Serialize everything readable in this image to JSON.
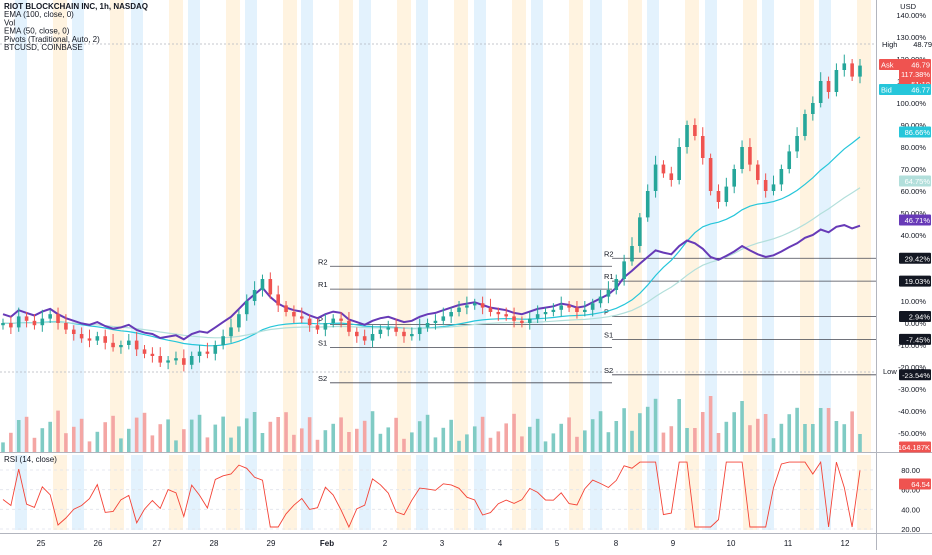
{
  "chart_data": {
    "type": "candlestick",
    "title": "RIOT BLOCKCHAIN INC, 1h, NASDAQ",
    "currency": "USD",
    "legend": [
      "RIOT BLOCKCHAIN INC, 1h, NASDAQ",
      "EMA (100, close, 0)",
      "Vol",
      "EMA (50, close, 0)",
      "Pivots (Traditional, Auto, 2)",
      "BTCUSD, COINBASE"
    ],
    "rsi_label": "RSI (14, close)",
    "x_labels": [
      "25",
      "26",
      "27",
      "28",
      "29",
      "Feb",
      "2",
      "3",
      "4",
      "5",
      "8",
      "9",
      "10",
      "11",
      "12"
    ],
    "y_ticks_pct": [
      "140.00%",
      "130.00%",
      "120.00%",
      "110.00%",
      "100.00%",
      "90.00%",
      "80.00%",
      "70.00%",
      "60.00%",
      "50.00%",
      "40.00%",
      "30.00%",
      "20.00%",
      "10.00%",
      "0.00%",
      "-10.00%",
      "-20.00%",
      "-30.00%",
      "-40.00%",
      "-50.00%"
    ],
    "rsi_ticks": [
      "80.00",
      "60.00",
      "40.00",
      "20.00"
    ],
    "pivots": [
      {
        "name": "R2",
        "pct": 29.42
      },
      {
        "name": "R1",
        "pct": 19.03
      },
      {
        "name": "P",
        "pct": 2.94
      },
      {
        "name": "S1",
        "pct": -7.45
      },
      {
        "name": "S2",
        "pct": -23.54
      }
    ],
    "tags": {
      "high_label": "High",
      "high_value": "48.79",
      "ask_label": "Ask",
      "ask_value": "46.79",
      "ask_pct": "117.38%",
      "countdown": "51:18",
      "bid_label": "Bid",
      "bid_value": "46.77",
      "ema100": "86.66%",
      "ema50": "64.75%",
      "btc": "46.71%",
      "low_label": "Low",
      "low_value": "16.75",
      "vol": "164.187K",
      "rsi": "64.54"
    },
    "colors": {
      "up": "#26a69a",
      "down": "#ef5350",
      "ema100": "#26c6da",
      "ema50": "#b2dfdb",
      "btc": "#673ab7",
      "rsi": "#f44336",
      "vol_up": "#80cbc4",
      "vol_down": "#f4a6a4",
      "stripe_blue": "#e3f2fd",
      "stripe_orange": "#fff3e0"
    },
    "series_candles_close_pct": [
      0,
      -2,
      3,
      1,
      -1,
      2,
      4,
      0,
      -3,
      -5,
      -7,
      -8,
      -6,
      -9,
      -11,
      -10,
      -8,
      -12,
      -14,
      -15,
      -18,
      -17,
      -16,
      -19,
      -15,
      -13,
      -14,
      -10,
      -6,
      -2,
      4,
      10,
      15,
      20,
      13,
      8,
      5,
      3,
      2,
      -1,
      -3,
      0,
      2,
      1,
      -4,
      -6,
      -8,
      -5,
      -3,
      -2,
      -4,
      -6,
      -5,
      -2,
      0,
      1,
      3,
      5,
      7,
      8,
      9,
      7,
      5,
      4,
      3,
      1,
      0,
      2,
      4,
      5,
      6,
      8,
      7,
      5,
      6,
      9,
      12,
      15,
      20,
      28,
      35,
      48,
      60,
      72,
      68,
      65,
      80,
      90,
      85,
      75,
      60,
      55,
      62,
      70,
      80,
      72,
      65,
      60,
      63,
      70,
      78,
      85,
      95,
      100,
      110,
      105,
      115,
      118,
      112,
      117
    ]
  }
}
